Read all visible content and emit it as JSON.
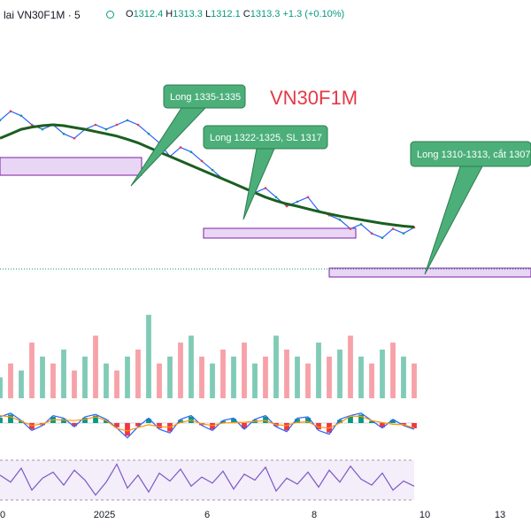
{
  "legend": {
    "symbol_text": "lai VN30F1M · 5",
    "open_label": "O",
    "open": "1312.4",
    "high_label": "H",
    "high": "1313.3",
    "low_label": "L",
    "low": "1312.1",
    "close_label": "C",
    "close": "1313.3",
    "change": "+1.3 (+0.10%)"
  },
  "colors": {
    "up": "#089981",
    "down": "#f23645",
    "callout": "#4caf7a",
    "callout_border": "#2e7d4f",
    "zone_fill": "#e9d6f5",
    "zone_stroke": "#7b1fa2",
    "ma_long": "#1b5e20",
    "rsi_line": "#7e57c2",
    "macd_line": "#2962ff",
    "signal_line": "#ff9800"
  },
  "chart_data": {
    "type": "line",
    "title": "VN30F1M",
    "x_tick_labels": [
      "0",
      "2025",
      "6",
      "8",
      "10",
      "13"
    ],
    "annotations": [
      {
        "text": "Long 1335-1335"
      },
      {
        "text": "Long 1322-1325, SL 1317"
      },
      {
        "text": "Long 1310-1313, cắt 1307"
      }
    ],
    "series": [
      {
        "values": [
          1337,
          1339,
          1338,
          1336,
          1335,
          1336,
          1334,
          1333,
          1335,
          1336,
          1335,
          1336,
          1337,
          1336,
          1334,
          1332,
          1329,
          1331,
          1330,
          1328,
          1326,
          1324,
          1323,
          1322,
          1321,
          1322,
          1320,
          1318,
          1319,
          1320,
          1317,
          1316,
          1315,
          1313,
          1314,
          1312,
          1311,
          1313,
          1312,
          1313.3
        ]
      },
      {
        "values": [
          1333,
          1334,
          1335,
          1335.5,
          1335.8,
          1336,
          1335.8,
          1335.4,
          1335,
          1334.5,
          1334,
          1333.5,
          1332.8,
          1332,
          1331,
          1330,
          1329,
          1328,
          1327,
          1326,
          1325,
          1324,
          1323,
          1322,
          1321,
          1320,
          1319.2,
          1318.5,
          1318,
          1317.4,
          1316.8,
          1316.3,
          1315.8,
          1315.4,
          1315,
          1314.6,
          1314.2,
          1313.9,
          1313.6,
          1313.4
        ]
      }
    ],
    "volume": [
      3,
      5,
      4,
      8,
      6,
      5,
      7,
      4,
      6,
      9,
      5,
      4,
      6,
      7,
      12,
      5,
      6,
      8,
      9,
      6,
      5,
      7,
      6,
      8,
      5,
      6,
      9,
      7,
      6,
      5,
      8,
      6,
      7,
      9,
      6,
      5,
      7,
      8,
      6,
      5
    ],
    "macd": [
      0.5,
      0.8,
      0.2,
      -0.6,
      -0.2,
      0.6,
      0.4,
      -0.3,
      0.5,
      0.7,
      0.3,
      -0.4,
      -1.2,
      -0.3,
      0.4,
      -0.5,
      -0.8,
      0.3,
      0.6,
      -0.2,
      -0.6,
      0.2,
      0.4,
      -0.5,
      0.3,
      0.6,
      -0.3,
      -0.7,
      0.4,
      0.5,
      -0.6,
      -0.9,
      0.3,
      0.6,
      0.8,
      0.2,
      -0.4,
      0.3,
      -0.2,
      -0.5
    ],
    "rsi": [
      55,
      48,
      62,
      40,
      52,
      58,
      45,
      60,
      50,
      35,
      48,
      66,
      42,
      55,
      38,
      57,
      49,
      61,
      44,
      53,
      47,
      59,
      41,
      56,
      50,
      63,
      39,
      52,
      46,
      58,
      43,
      60,
      48,
      64,
      51,
      45,
      57,
      40,
      49,
      44
    ]
  }
}
